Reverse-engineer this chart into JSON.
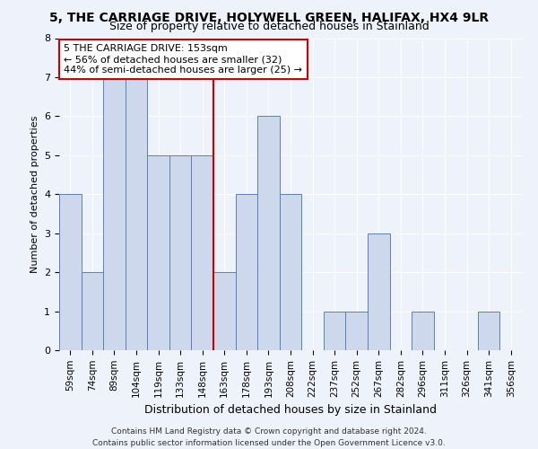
{
  "title1": "5, THE CARRIAGE DRIVE, HOLYWELL GREEN, HALIFAX, HX4 9LR",
  "title2": "Size of property relative to detached houses in Stainland",
  "xlabel": "Distribution of detached houses by size in Stainland",
  "ylabel": "Number of detached properties",
  "bins": [
    "59sqm",
    "74sqm",
    "89sqm",
    "104sqm",
    "119sqm",
    "133sqm",
    "148sqm",
    "163sqm",
    "178sqm",
    "193sqm",
    "208sqm",
    "222sqm",
    "237sqm",
    "252sqm",
    "267sqm",
    "282sqm",
    "296sqm",
    "311sqm",
    "326sqm",
    "341sqm",
    "356sqm"
  ],
  "values": [
    4,
    2,
    7,
    7,
    5,
    5,
    5,
    2,
    4,
    6,
    4,
    0,
    1,
    1,
    3,
    0,
    1,
    0,
    0,
    1,
    0
  ],
  "bar_color": "#cdd8ed",
  "bar_edge_color": "#5b7fba",
  "vline_color": "#cc0000",
  "annotation_line1": "5 THE CARRIAGE DRIVE: 153sqm",
  "annotation_line2": "← 56% of detached houses are smaller (32)",
  "annotation_line3": "44% of semi-detached houses are larger (25) →",
  "annotation_box_color": "#ffffff",
  "annotation_box_edge": "#cc0000",
  "footnote": "Contains HM Land Registry data © Crown copyright and database right 2024.\nContains public sector information licensed under the Open Government Licence v3.0.",
  "ylim": [
    0,
    8
  ],
  "background_color": "#eef2fa",
  "grid_color": "#ffffff",
  "title1_fontsize": 10,
  "title2_fontsize": 9,
  "xlabel_fontsize": 9,
  "ylabel_fontsize": 8,
  "tick_fontsize": 7.5,
  "annotation_fontsize": 8,
  "footnote_fontsize": 6.5
}
